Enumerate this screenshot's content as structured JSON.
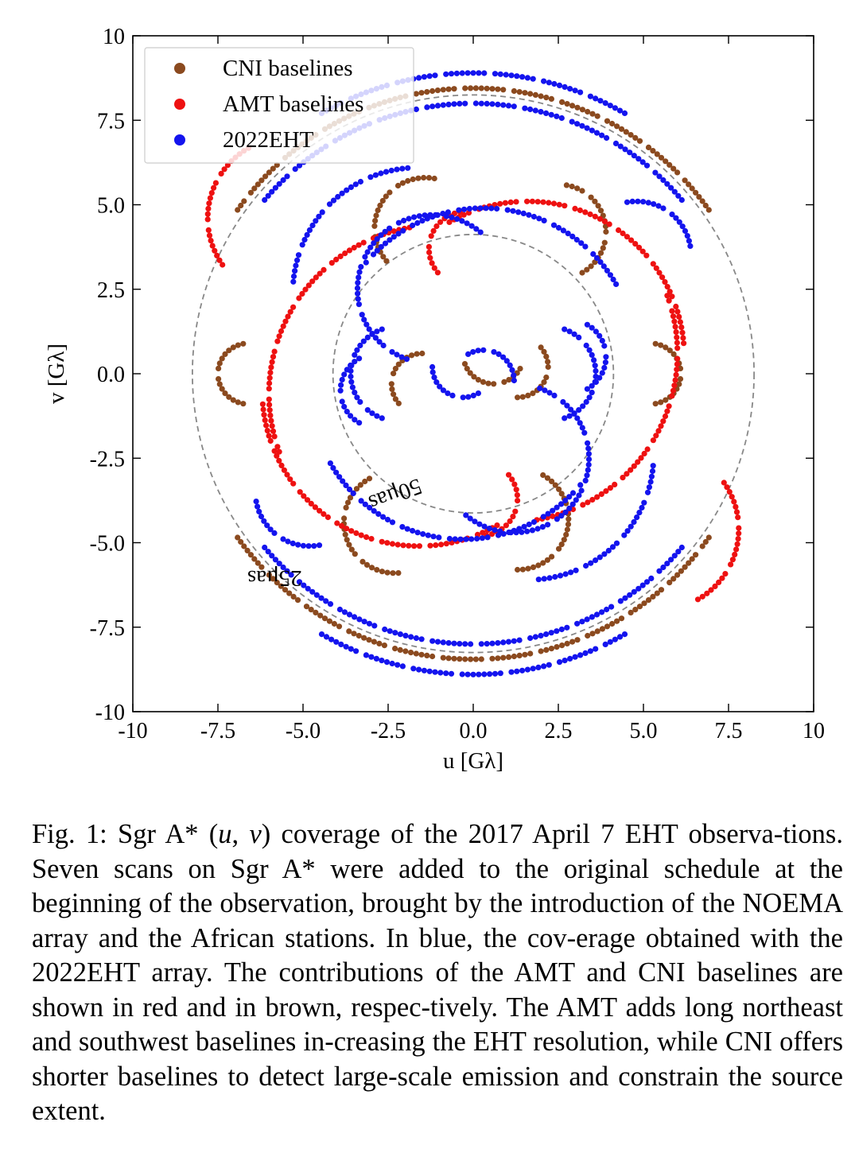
{
  "chart_data": {
    "type": "scatter",
    "xlabel": "u [Gλ]",
    "ylabel": "v [Gλ]",
    "xlim": [
      -10,
      10
    ],
    "ylim": [
      -10,
      10
    ],
    "xticks": [
      -10,
      -7.5,
      -5.0,
      -2.5,
      0.0,
      2.5,
      5.0,
      7.5,
      10
    ],
    "xtick_labels": [
      "-10",
      "-7.5",
      "-5.0",
      "-2.5",
      "0.0",
      "2.5",
      "5.0",
      "7.5",
      "10"
    ],
    "yticks": [
      10,
      7.5,
      5.0,
      2.5,
      0.0,
      -2.5,
      -5.0,
      -7.5,
      -10
    ],
    "ytick_labels": [
      "10",
      "7.5",
      "5.0",
      "2.5",
      "0.0",
      "-2.5",
      "-5.0",
      "-7.5",
      "-10"
    ],
    "grid": false,
    "legend_position": "top-left",
    "circles": [
      {
        "label": "50μas",
        "radius": 4.12
      },
      {
        "label": "25μas",
        "radius": 8.25
      }
    ],
    "series": [
      {
        "name": "CNI baselines",
        "color": "#8b4a1f",
        "arcs": [
          {
            "cx": 0,
            "cy": 0,
            "r": 8.45,
            "a1": 35,
            "a2": 145
          },
          {
            "cx": 0,
            "cy": 0,
            "r": 8.45,
            "a1": 215,
            "a2": 325
          },
          {
            "cx": -1.4,
            "cy": 4.3,
            "r": 1.5,
            "a1": 80,
            "a2": 220
          },
          {
            "cx": 2.5,
            "cy": 4.2,
            "r": 1.4,
            "a1": -60,
            "a2": 80
          },
          {
            "cx": 5.2,
            "cy": 0.0,
            "r": 0.9,
            "a1": -80,
            "a2": 80
          },
          {
            "cx": -6.6,
            "cy": 0.0,
            "r": 0.9,
            "a1": 100,
            "a2": 260
          },
          {
            "cx": -2.3,
            "cy": -4.4,
            "r": 1.5,
            "a1": 120,
            "a2": 280
          },
          {
            "cx": 1.3,
            "cy": -4.3,
            "r": 1.5,
            "a1": -90,
            "a2": 60
          },
          {
            "cx": 1.3,
            "cy": 0.2,
            "r": 0.9,
            "a1": -90,
            "a2": 40
          },
          {
            "cx": -1.5,
            "cy": -0.3,
            "r": 0.9,
            "a1": 90,
            "a2": 220
          },
          {
            "cx": 0.6,
            "cy": 0.6,
            "r": 0.9,
            "a1": 200,
            "a2": 330
          }
        ]
      },
      {
        "name": "AMT baselines",
        "color": "#ee1111",
        "arcs": [
          {
            "cx": -5.4,
            "cy": 4.6,
            "r": 2.4,
            "a1": 120,
            "a2": 215
          },
          {
            "cx": 5.4,
            "cy": -4.6,
            "r": 2.4,
            "a1": -60,
            "a2": 35
          },
          {
            "cx": 1.6,
            "cy": 0.5,
            "r": 4.6,
            "a1": 5,
            "a2": 120
          },
          {
            "cx": -1.6,
            "cy": -0.5,
            "r": 4.6,
            "a1": 185,
            "a2": 300
          },
          {
            "cx": -1.0,
            "cy": -0.6,
            "r": 5.0,
            "a1": 100,
            "a2": 200
          },
          {
            "cx": 1.0,
            "cy": 0.6,
            "r": 5.0,
            "a1": 280,
            "a2": 20
          },
          {
            "cx": -0.2,
            "cy": 3.7,
            "r": 1.1,
            "a1": 100,
            "a2": 220
          },
          {
            "cx": 0.2,
            "cy": -3.7,
            "r": 1.1,
            "a1": -80,
            "a2": 40
          }
        ]
      },
      {
        "name": "2022EHT",
        "color": "#1414ee",
        "arcs": [
          {
            "cx": 0,
            "cy": 0,
            "r": 8.9,
            "a1": 60,
            "a2": 120
          },
          {
            "cx": 0,
            "cy": 0,
            "r": 8.9,
            "a1": 240,
            "a2": 300
          },
          {
            "cx": 0,
            "cy": 0,
            "r": 8.0,
            "a1": 40,
            "a2": 140
          },
          {
            "cx": 0,
            "cy": 0,
            "r": 8.0,
            "a1": 220,
            "a2": 320
          },
          {
            "cx": -1.2,
            "cy": 2.5,
            "r": 2.2,
            "a1": 50,
            "a2": 250
          },
          {
            "cx": 1.2,
            "cy": -2.5,
            "r": 2.2,
            "a1": 230,
            "a2": 430
          },
          {
            "cx": 0.3,
            "cy": 0.4,
            "r": 4.5,
            "a1": 30,
            "a2": 140
          },
          {
            "cx": -0.3,
            "cy": -0.4,
            "r": 4.5,
            "a1": 210,
            "a2": 320
          },
          {
            "cx": -2.2,
            "cy": 0.0,
            "r": 1.4,
            "a1": 110,
            "a2": 250
          },
          {
            "cx": 2.2,
            "cy": 0.0,
            "r": 1.4,
            "a1": -70,
            "a2": 70
          },
          {
            "cx": -2.8,
            "cy": -0.5,
            "r": 1.1,
            "a1": 120,
            "a2": 240
          },
          {
            "cx": 2.8,
            "cy": 0.5,
            "r": 1.1,
            "a1": -60,
            "a2": 60
          },
          {
            "cx": 4.8,
            "cy": 3.5,
            "r": 1.6,
            "a1": 10,
            "a2": 100
          },
          {
            "cx": -4.8,
            "cy": -3.5,
            "r": 1.6,
            "a1": 190,
            "a2": 280
          },
          {
            "cx": -1.6,
            "cy": 2.4,
            "r": 3.7,
            "a1": 95,
            "a2": 175
          },
          {
            "cx": 1.6,
            "cy": -2.4,
            "r": 3.7,
            "a1": 275,
            "a2": 355
          },
          {
            "cx": -0.3,
            "cy": 0.2,
            "r": 0.9,
            "a1": 180,
            "a2": 300
          },
          {
            "cx": 0.3,
            "cy": -0.2,
            "r": 0.9,
            "a1": 0,
            "a2": 120
          }
        ]
      }
    ]
  },
  "caption": "Fig. 1: Sgr A* (u, v) coverage of the 2017 April 7 EHT observations. Seven scans on Sgr A* were added to the original schedule at the beginning of the observation, brought by the introduction of the NOEMA array and the African stations. In blue, the coverage obtained with the 2022EHT array. The contributions of the AMT and CNI baselines are shown in red and in brown, respectively. The AMT adds long northeast and southwest baselines increasing the EHT resolution, while CNI offers shorter baselines to detect large-scale emission and constrain the source extent.",
  "caption_parts": {
    "lead": "Fig. 1: Sgr A* (",
    "u": "u",
    "comma": ", ",
    "v": "v",
    "rest1": ") coverage of the 2017 April 7 EHT observa",
    "rest2": "tions. Seven scans on Sgr A* were added to the original schedule at the beginning of the observation, brought by the introduction of the NOEMA array and the African stations. In blue, the cov",
    "rest3": "erage obtained with the 2022EHT array. The contributions of the AMT and CNI baselines are shown in red and in brown, respec",
    "rest4": "tively. The AMT adds long northeast and southwest baselines in",
    "rest5": "creasing the EHT resolution, while CNI offers shorter baselines to detect large-scale emission and constrain the source extent."
  }
}
